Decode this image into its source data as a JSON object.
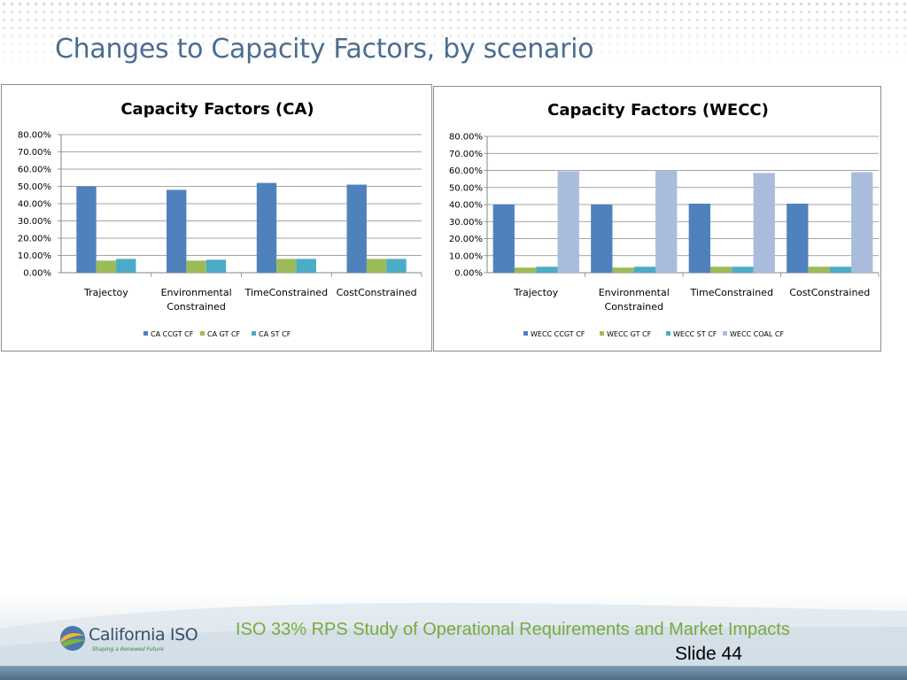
{
  "slide": {
    "title": "Changes to Capacity Factors, by scenario",
    "footer_text": "ISO 33% RPS Study of Operational Requirements and Market Impacts",
    "slide_number": "Slide 44",
    "logo_name": "California ISO",
    "logo_tagline": "Shaping a Renewed Future",
    "colors": {
      "title": "#4b6d8f",
      "footer_text": "#77ab3d"
    }
  },
  "chart_data": [
    {
      "type": "bar",
      "title": "Capacity Factors (CA)",
      "categories": [
        [
          "Trajectoy"
        ],
        [
          "Environmental",
          "Constrained"
        ],
        [
          "TimeConstrained"
        ],
        [
          "CostConstrained"
        ]
      ],
      "ylim": [
        0,
        0.8
      ],
      "yticks": [
        "0.00%",
        "10.00%",
        "20.00%",
        "30.00%",
        "40.00%",
        "50.00%",
        "60.00%",
        "70.00%",
        "80.00%"
      ],
      "grid": true,
      "legend_position": "bottom",
      "series": [
        {
          "name": "CA CCGT CF",
          "color": "#4f81bd",
          "values": [
            0.5,
            0.48,
            0.52,
            0.51
          ]
        },
        {
          "name": "CA GT CF",
          "color": "#9bbb59",
          "values": [
            0.07,
            0.07,
            0.08,
            0.08
          ]
        },
        {
          "name": "CA ST CF",
          "color": "#4bacc6",
          "values": [
            0.08,
            0.075,
            0.08,
            0.08
          ]
        }
      ]
    },
    {
      "type": "bar",
      "title": "Capacity Factors (WECC)",
      "categories": [
        [
          "Trajectoy"
        ],
        [
          "Environmental",
          "Constrained"
        ],
        [
          "TimeConstrained"
        ],
        [
          "CostConstrained"
        ]
      ],
      "ylim": [
        0,
        0.8
      ],
      "yticks": [
        "0.00%",
        "10.00%",
        "20.00%",
        "30.00%",
        "40.00%",
        "50.00%",
        "60.00%",
        "70.00%",
        "80.00%"
      ],
      "grid": true,
      "legend_position": "bottom",
      "series": [
        {
          "name": "WECC CCGT CF",
          "color": "#4f81bd",
          "values": [
            0.4,
            0.4,
            0.405,
            0.405
          ]
        },
        {
          "name": "WECC GT CF",
          "color": "#9bbb59",
          "values": [
            0.03,
            0.03,
            0.035,
            0.035
          ]
        },
        {
          "name": "WECC ST CF",
          "color": "#4bacc6",
          "values": [
            0.035,
            0.035,
            0.035,
            0.035
          ]
        },
        {
          "name": "WECC COAL CF",
          "color": "#a9bcdc",
          "values": [
            0.595,
            0.6,
            0.585,
            0.59
          ]
        }
      ]
    }
  ]
}
